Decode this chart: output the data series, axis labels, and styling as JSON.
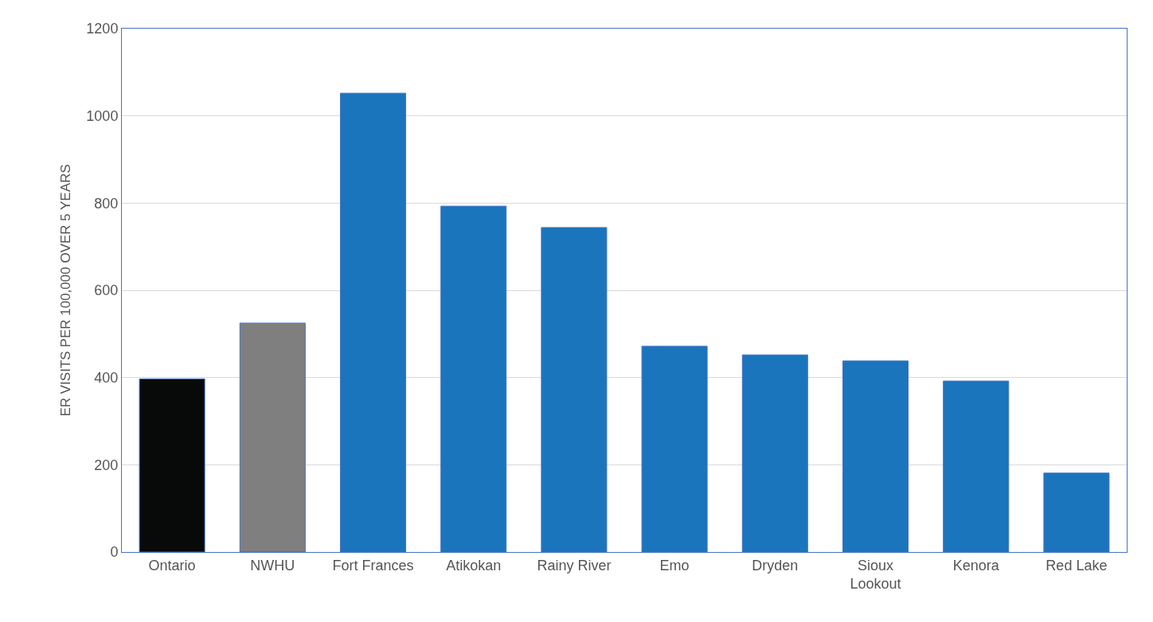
{
  "chart_data": {
    "type": "bar",
    "ylabel": "ER VISITS PER 100,000 OVER 5 YEARS",
    "categories": [
      "Ontario",
      "NWHU",
      "Fort Frances",
      "Atikokan",
      "Rainy River",
      "Emo",
      "Dryden",
      "Sioux Lookout",
      "Kenora",
      "Red Lake"
    ],
    "values": [
      397,
      525,
      1052,
      793,
      744,
      472,
      452,
      438,
      392,
      181
    ],
    "colors": [
      "#080a0a",
      "#7f7f7f",
      "#1a75bc",
      "#1a75bc",
      "#1a75bc",
      "#1a75bc",
      "#1a75bc",
      "#1a75bc",
      "#1a75bc",
      "#1a75bc"
    ],
    "ylim": [
      0,
      1200
    ],
    "yticks": [
      0,
      200,
      400,
      600,
      800,
      1000,
      1200
    ],
    "grid": "y"
  }
}
